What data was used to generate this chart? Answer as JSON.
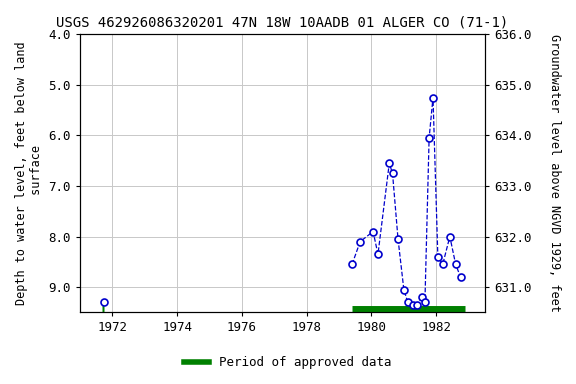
{
  "title": "USGS 462926086320201 47N 18W 10AADB 01 ALGER CO (71-1)",
  "ylabel_left": "Depth to water level, feet below land\n surface",
  "ylabel_right": "Groundwater level above NGVD 1929, feet",
  "xlim": [
    1971.0,
    1983.5
  ],
  "ylim_left": [
    4.0,
    9.5
  ],
  "ylim_right": [
    630.5,
    636.0
  ],
  "xticks": [
    1972,
    1974,
    1976,
    1978,
    1980,
    1982
  ],
  "yticks_left": [
    4.0,
    5.0,
    6.0,
    7.0,
    8.0,
    9.0
  ],
  "yticks_right": [
    631.0,
    632.0,
    633.0,
    634.0,
    635.0,
    636.0
  ],
  "isolated_x": [
    1971.75
  ],
  "isolated_y": [
    9.3
  ],
  "connected_x": [
    1979.4,
    1979.65,
    1980.05,
    1980.2,
    1980.55,
    1980.65,
    1980.82,
    1981.0,
    1981.12,
    1981.28,
    1981.42,
    1981.55,
    1981.65,
    1981.78,
    1981.9,
    1982.05,
    1982.2,
    1982.42,
    1982.6,
    1982.75
  ],
  "connected_y": [
    8.55,
    8.1,
    7.9,
    8.35,
    6.55,
    6.75,
    8.05,
    9.05,
    9.3,
    9.35,
    9.35,
    9.2,
    9.3,
    6.05,
    5.25,
    8.4,
    8.55,
    8.0,
    8.55,
    8.8
  ],
  "approved_x1_start": 1971.68,
  "approved_x1_end": 1971.75,
  "approved_x2_start": 1979.4,
  "approved_x2_end": 1982.9,
  "approved_y": 9.44,
  "line_color": "#0000cc",
  "approved_color": "#008000",
  "bg_color": "#ffffff",
  "grid_color": "#c8c8c8",
  "title_fontsize": 10,
  "label_fontsize": 8.5,
  "tick_fontsize": 9,
  "legend_fontsize": 9
}
